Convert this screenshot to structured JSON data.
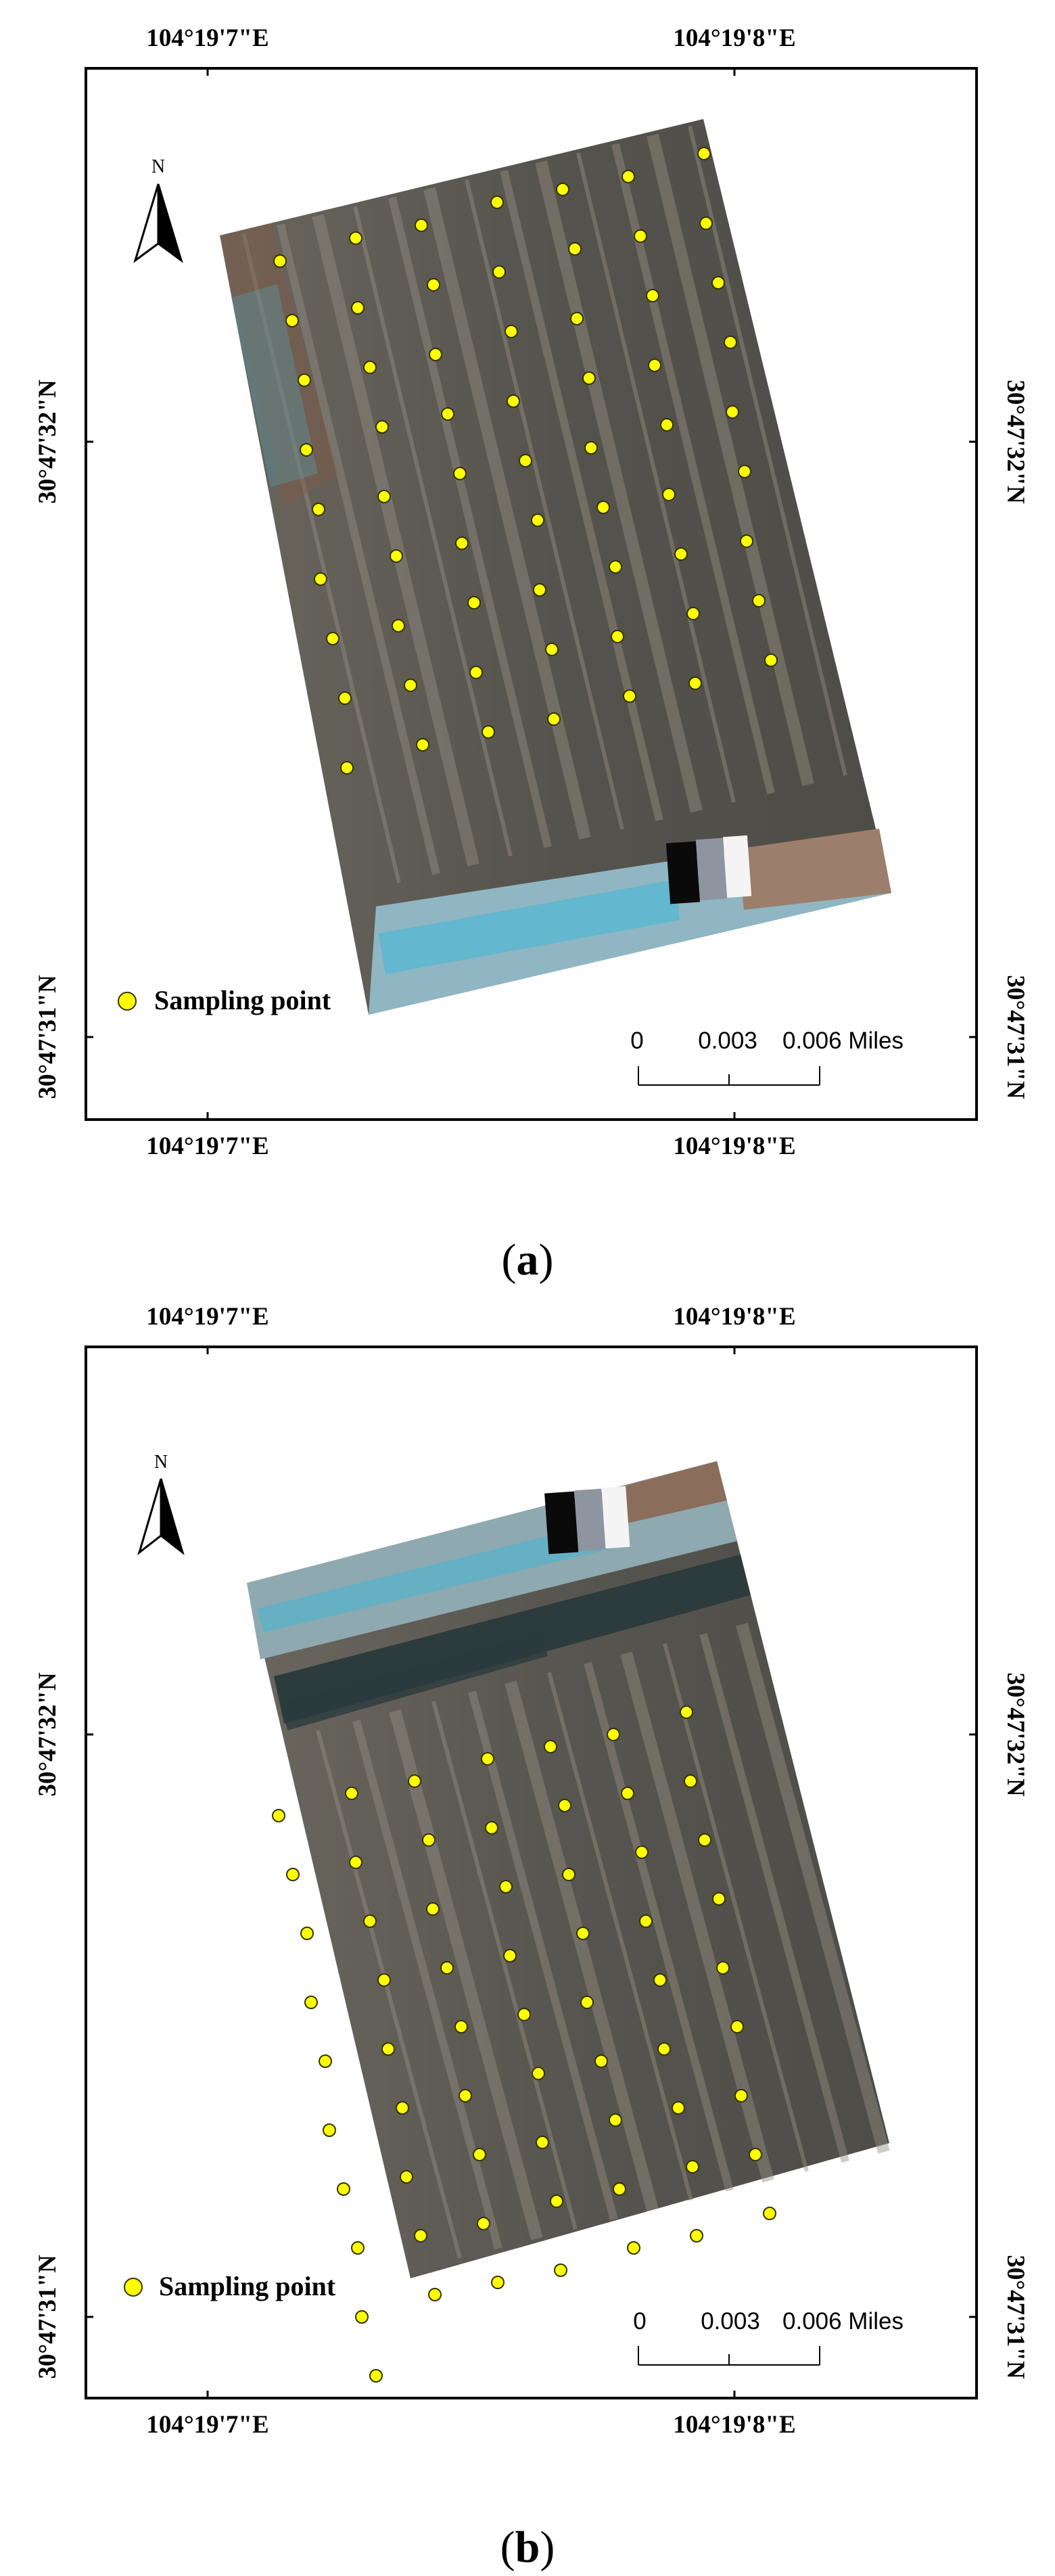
{
  "panels": [
    {
      "id": "a",
      "label_open": "(",
      "label_letter": "a",
      "label_close": ")",
      "lon_left": "104°19'7\"E",
      "lon_right": "104°19'8\"E",
      "lat_upper": "30°47'32\"N",
      "lat_lower": "30°47'31\"N",
      "north_label": "N",
      "legend_label": "Sampling point",
      "scale_labels": [
        "0",
        "0.003",
        "0.006 Miles"
      ],
      "sampling_point_count": 63
    },
    {
      "id": "b",
      "label_open": "(",
      "label_letter": "b",
      "label_close": ")",
      "lon_left": "104°19'7\"E",
      "lon_right": "104°19'8\"E",
      "lat_upper": "30°47'32\"N",
      "lat_lower": "30°47'31\"N",
      "north_label": "N",
      "legend_label": "Sampling point",
      "scale_labels": [
        "0",
        "0.003",
        "0.006 Miles"
      ],
      "sampling_point_count": 64
    }
  ],
  "colors": {
    "frame": "#000000",
    "point_fill": "#ffff00",
    "point_stroke": "#333300",
    "imagery_base": "#57554f",
    "imagery_light": "#9a968c",
    "imagery_cyan": "#46b7d6",
    "imagery_rust": "#8a5a40",
    "imagery_shadow": "#2c3b3c"
  }
}
